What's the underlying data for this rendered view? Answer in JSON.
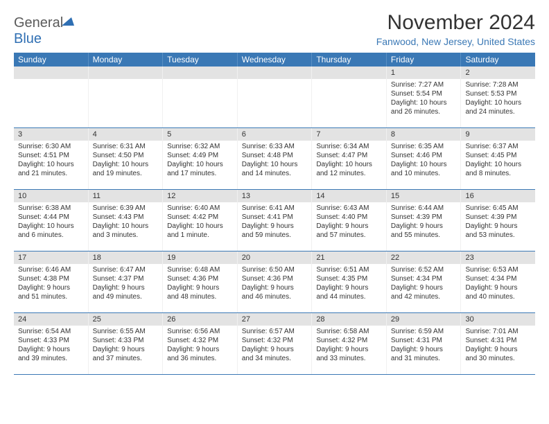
{
  "logo": {
    "word1": "General",
    "word2": "Blue"
  },
  "title": "November 2024",
  "location": "Fanwood, New Jersey, United States",
  "colors": {
    "header_blue": "#3a78b5",
    "daynum_bg": "#e3e3e3",
    "logo_blue": "#2f6fb3",
    "text": "#333333",
    "location_text": "#3a78b5"
  },
  "weekdays": [
    "Sunday",
    "Monday",
    "Tuesday",
    "Wednesday",
    "Thursday",
    "Friday",
    "Saturday"
  ],
  "weeks": [
    [
      {
        "empty": true
      },
      {
        "empty": true
      },
      {
        "empty": true
      },
      {
        "empty": true
      },
      {
        "empty": true
      },
      {
        "num": "1",
        "sunrise": "Sunrise: 7:27 AM",
        "sunset": "Sunset: 5:54 PM",
        "dl1": "Daylight: 10 hours",
        "dl2": "and 26 minutes."
      },
      {
        "num": "2",
        "sunrise": "Sunrise: 7:28 AM",
        "sunset": "Sunset: 5:53 PM",
        "dl1": "Daylight: 10 hours",
        "dl2": "and 24 minutes."
      }
    ],
    [
      {
        "num": "3",
        "sunrise": "Sunrise: 6:30 AM",
        "sunset": "Sunset: 4:51 PM",
        "dl1": "Daylight: 10 hours",
        "dl2": "and 21 minutes."
      },
      {
        "num": "4",
        "sunrise": "Sunrise: 6:31 AM",
        "sunset": "Sunset: 4:50 PM",
        "dl1": "Daylight: 10 hours",
        "dl2": "and 19 minutes."
      },
      {
        "num": "5",
        "sunrise": "Sunrise: 6:32 AM",
        "sunset": "Sunset: 4:49 PM",
        "dl1": "Daylight: 10 hours",
        "dl2": "and 17 minutes."
      },
      {
        "num": "6",
        "sunrise": "Sunrise: 6:33 AM",
        "sunset": "Sunset: 4:48 PM",
        "dl1": "Daylight: 10 hours",
        "dl2": "and 14 minutes."
      },
      {
        "num": "7",
        "sunrise": "Sunrise: 6:34 AM",
        "sunset": "Sunset: 4:47 PM",
        "dl1": "Daylight: 10 hours",
        "dl2": "and 12 minutes."
      },
      {
        "num": "8",
        "sunrise": "Sunrise: 6:35 AM",
        "sunset": "Sunset: 4:46 PM",
        "dl1": "Daylight: 10 hours",
        "dl2": "and 10 minutes."
      },
      {
        "num": "9",
        "sunrise": "Sunrise: 6:37 AM",
        "sunset": "Sunset: 4:45 PM",
        "dl1": "Daylight: 10 hours",
        "dl2": "and 8 minutes."
      }
    ],
    [
      {
        "num": "10",
        "sunrise": "Sunrise: 6:38 AM",
        "sunset": "Sunset: 4:44 PM",
        "dl1": "Daylight: 10 hours",
        "dl2": "and 6 minutes."
      },
      {
        "num": "11",
        "sunrise": "Sunrise: 6:39 AM",
        "sunset": "Sunset: 4:43 PM",
        "dl1": "Daylight: 10 hours",
        "dl2": "and 3 minutes."
      },
      {
        "num": "12",
        "sunrise": "Sunrise: 6:40 AM",
        "sunset": "Sunset: 4:42 PM",
        "dl1": "Daylight: 10 hours",
        "dl2": "and 1 minute."
      },
      {
        "num": "13",
        "sunrise": "Sunrise: 6:41 AM",
        "sunset": "Sunset: 4:41 PM",
        "dl1": "Daylight: 9 hours",
        "dl2": "and 59 minutes."
      },
      {
        "num": "14",
        "sunrise": "Sunrise: 6:43 AM",
        "sunset": "Sunset: 4:40 PM",
        "dl1": "Daylight: 9 hours",
        "dl2": "and 57 minutes."
      },
      {
        "num": "15",
        "sunrise": "Sunrise: 6:44 AM",
        "sunset": "Sunset: 4:39 PM",
        "dl1": "Daylight: 9 hours",
        "dl2": "and 55 minutes."
      },
      {
        "num": "16",
        "sunrise": "Sunrise: 6:45 AM",
        "sunset": "Sunset: 4:39 PM",
        "dl1": "Daylight: 9 hours",
        "dl2": "and 53 minutes."
      }
    ],
    [
      {
        "num": "17",
        "sunrise": "Sunrise: 6:46 AM",
        "sunset": "Sunset: 4:38 PM",
        "dl1": "Daylight: 9 hours",
        "dl2": "and 51 minutes."
      },
      {
        "num": "18",
        "sunrise": "Sunrise: 6:47 AM",
        "sunset": "Sunset: 4:37 PM",
        "dl1": "Daylight: 9 hours",
        "dl2": "and 49 minutes."
      },
      {
        "num": "19",
        "sunrise": "Sunrise: 6:48 AM",
        "sunset": "Sunset: 4:36 PM",
        "dl1": "Daylight: 9 hours",
        "dl2": "and 48 minutes."
      },
      {
        "num": "20",
        "sunrise": "Sunrise: 6:50 AM",
        "sunset": "Sunset: 4:36 PM",
        "dl1": "Daylight: 9 hours",
        "dl2": "and 46 minutes."
      },
      {
        "num": "21",
        "sunrise": "Sunrise: 6:51 AM",
        "sunset": "Sunset: 4:35 PM",
        "dl1": "Daylight: 9 hours",
        "dl2": "and 44 minutes."
      },
      {
        "num": "22",
        "sunrise": "Sunrise: 6:52 AM",
        "sunset": "Sunset: 4:34 PM",
        "dl1": "Daylight: 9 hours",
        "dl2": "and 42 minutes."
      },
      {
        "num": "23",
        "sunrise": "Sunrise: 6:53 AM",
        "sunset": "Sunset: 4:34 PM",
        "dl1": "Daylight: 9 hours",
        "dl2": "and 40 minutes."
      }
    ],
    [
      {
        "num": "24",
        "sunrise": "Sunrise: 6:54 AM",
        "sunset": "Sunset: 4:33 PM",
        "dl1": "Daylight: 9 hours",
        "dl2": "and 39 minutes."
      },
      {
        "num": "25",
        "sunrise": "Sunrise: 6:55 AM",
        "sunset": "Sunset: 4:33 PM",
        "dl1": "Daylight: 9 hours",
        "dl2": "and 37 minutes."
      },
      {
        "num": "26",
        "sunrise": "Sunrise: 6:56 AM",
        "sunset": "Sunset: 4:32 PM",
        "dl1": "Daylight: 9 hours",
        "dl2": "and 36 minutes."
      },
      {
        "num": "27",
        "sunrise": "Sunrise: 6:57 AM",
        "sunset": "Sunset: 4:32 PM",
        "dl1": "Daylight: 9 hours",
        "dl2": "and 34 minutes."
      },
      {
        "num": "28",
        "sunrise": "Sunrise: 6:58 AM",
        "sunset": "Sunset: 4:32 PM",
        "dl1": "Daylight: 9 hours",
        "dl2": "and 33 minutes."
      },
      {
        "num": "29",
        "sunrise": "Sunrise: 6:59 AM",
        "sunset": "Sunset: 4:31 PM",
        "dl1": "Daylight: 9 hours",
        "dl2": "and 31 minutes."
      },
      {
        "num": "30",
        "sunrise": "Sunrise: 7:01 AM",
        "sunset": "Sunset: 4:31 PM",
        "dl1": "Daylight: 9 hours",
        "dl2": "and 30 minutes."
      }
    ]
  ]
}
